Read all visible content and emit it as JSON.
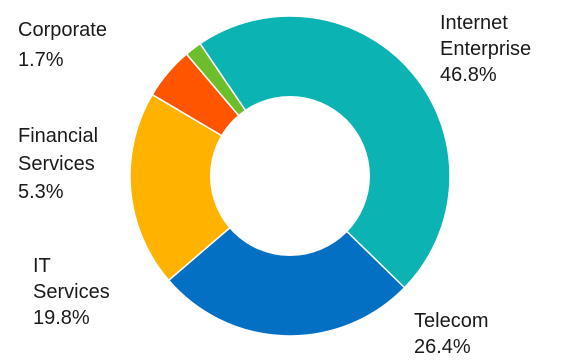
{
  "chart_data": {
    "type": "pie",
    "style": "donut",
    "slices": [
      {
        "name": "Internet Enterprise",
        "label_lines": [
          "Internet",
          "Enterprise"
        ],
        "value_label": "46.8%",
        "value": 46.8,
        "color": "#0BB3B3"
      },
      {
        "name": "Telecom",
        "label_lines": [
          "Telecom"
        ],
        "value_label": "26.4%",
        "value": 26.4,
        "color": "#0470C4"
      },
      {
        "name": "IT Services",
        "label_lines": [
          "IT",
          "Services"
        ],
        "value_label": "19.8%",
        "value": 19.8,
        "color": "#FFB300"
      },
      {
        "name": "Financial Services",
        "label_lines": [
          "Financial",
          "Services"
        ],
        "value_label": "5.3%",
        "value": 5.3,
        "color": "#FF5400"
      },
      {
        "name": "Corporate",
        "label_lines": [
          "Corporate"
        ],
        "value_label": "1.7%",
        "value": 1.7,
        "color": "#6EBE2C"
      }
    ]
  }
}
